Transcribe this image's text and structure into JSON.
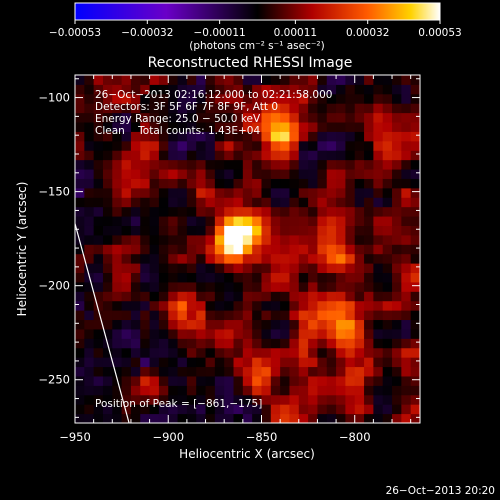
{
  "chart_data": {
    "type": "heatmap",
    "title": "Reconstructed RHESSI Image",
    "xlabel": "Heliocentric X (arcsec)",
    "ylabel": "Heliocentric Y (arcsec)",
    "xlim": [
      -950,
      -765
    ],
    "ylim": [
      -273,
      -88
    ],
    "x_ticks": [
      -950,
      -900,
      -850,
      -800
    ],
    "x_tick_labels": [
      "−950",
      "−900",
      "−850",
      "−800"
    ],
    "y_ticks": [
      -100,
      -150,
      -200,
      -250
    ],
    "y_tick_labels": [
      "−100",
      "−150",
      "−200",
      "−250"
    ],
    "colorbar": {
      "range": [
        -0.00053,
        0.00053
      ],
      "ticks": [
        -0.00053,
        -0.00032,
        -0.00011,
        0.00011,
        0.00032,
        0.00053
      ],
      "tick_labels": [
        "−0.00053",
        "−0.00032",
        "−0.00011",
        "0.00011",
        "0.00032",
        "0.00053"
      ],
      "units_label": "(photons cm⁻² s⁻¹ asec⁻²)"
    },
    "info_lines": [
      "26−Oct−2013 02:16:12.000 to 02:21:58.000",
      "Detectors: 3F 5F 6F 7F 8F 9F, Att 0",
      "Energy Range: 25.0 − 50.0 keV",
      "Clean    Total counts: 1.43E+04"
    ],
    "peak_label": "Position of Peak = [−861,−175]",
    "peak": [
      -861,
      -175
    ],
    "sources": [
      {
        "x": -861,
        "y": -175,
        "amp": 0.00053
      },
      {
        "x": -806,
        "y": -222,
        "amp": 0.0004
      },
      {
        "x": -840,
        "y": -118,
        "amp": 0.00032
      },
      {
        "x": -806,
        "y": -186,
        "amp": 0.00024
      },
      {
        "x": -888,
        "y": -214,
        "amp": 0.00022
      },
      {
        "x": -920,
        "y": -138,
        "amp": 0.0002
      },
      {
        "x": -852,
        "y": -245,
        "amp": 0.00018
      }
    ],
    "limb": [
      [
        -950,
        -167
      ],
      [
        -921,
        -273
      ]
    ],
    "colors": {
      "background": "#000000",
      "foreground": "#ffffff",
      "limb": "#ffffff"
    }
  },
  "footer_timestamp": "26−Oct−2013 20:20"
}
